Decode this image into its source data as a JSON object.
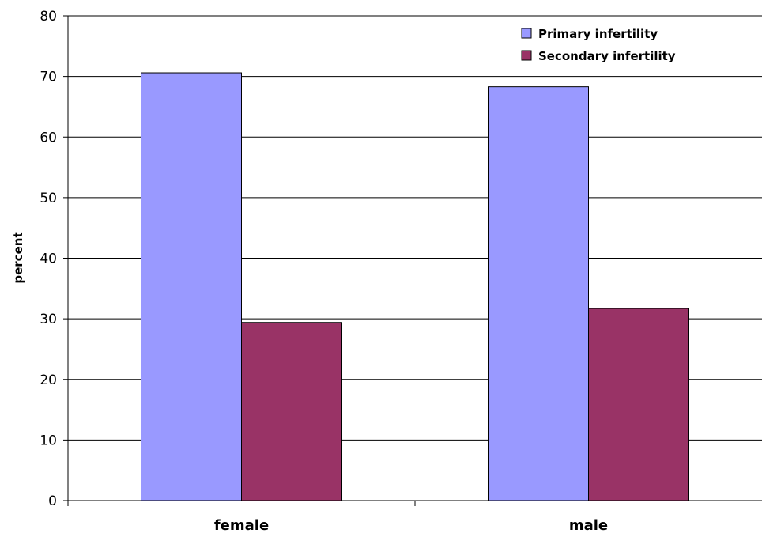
{
  "chart_data": {
    "type": "bar",
    "title": "",
    "xlabel": "",
    "ylabel": "percent",
    "categories": [
      "female",
      "male"
    ],
    "series": [
      {
        "name": "Primary infertility",
        "color": "#9999ff",
        "values": [
          70.6,
          68.3
        ]
      },
      {
        "name": "Secondary infertility",
        "color": "#993366",
        "values": [
          29.4,
          31.7
        ]
      }
    ],
    "ylim": [
      0,
      80
    ],
    "yticks": [
      0,
      10,
      20,
      30,
      40,
      50,
      60,
      70,
      80
    ],
    "grid": true,
    "legend_position": "top-right"
  }
}
